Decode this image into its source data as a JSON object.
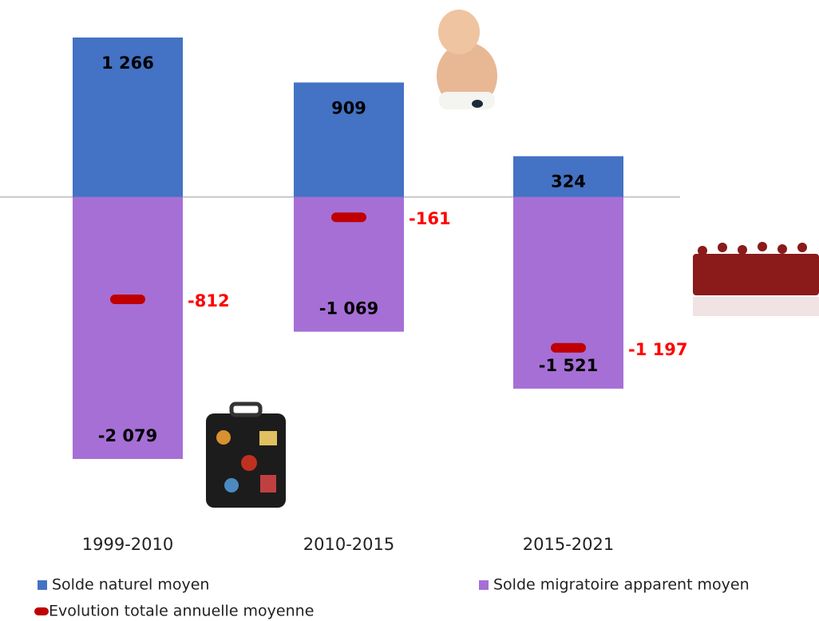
{
  "chart_data": {
    "type": "bar",
    "categories": [
      "1999-2010",
      "2010-2015",
      "2015-2021"
    ],
    "series": [
      {
        "name": "Solde naturel moyen",
        "color": "#4472c4",
        "values": [
          1266,
          909,
          324
        ],
        "value_labels": [
          "1 266",
          "909",
          "324"
        ]
      },
      {
        "name": "Solde migratoire apparent moyen",
        "color": "#a66fd6",
        "values": [
          -2079,
          -1069,
          -1521
        ],
        "value_labels": [
          "-2 079",
          "-1 069",
          "-1 521"
        ]
      },
      {
        "name": "Evolution totale annuelle moyenne",
        "color": "#c00000",
        "kind": "dash",
        "values": [
          -812,
          -161,
          -1197
        ],
        "value_labels": [
          "-812",
          "-161",
          "-1 197"
        ],
        "label_color": "#ff0000"
      }
    ]
  }
}
